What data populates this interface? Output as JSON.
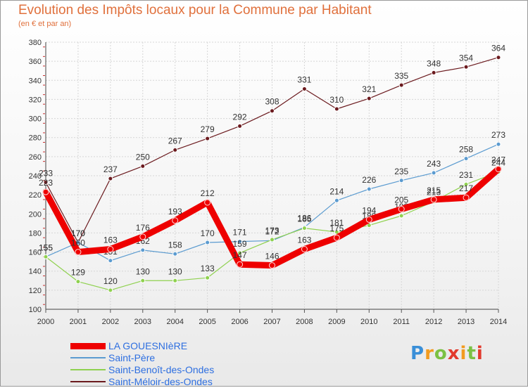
{
  "header": {
    "title": "Evolution des Impôts locaux pour la Commune par Habitant",
    "subtitle": "(en € et par an)"
  },
  "brand": {
    "logo_text": "Proxiti"
  },
  "legend": {
    "items": [
      "LA GOUESNIèRE",
      "Saint-Père",
      "Saint-Benoît-des-Ondes",
      "Saint-Méloir-des-Ondes"
    ]
  },
  "chart_data": {
    "type": "line",
    "title": "Evolution des Impôts locaux pour la Commune par Habitant",
    "subtitle": "(en € et par an)",
    "xlabel": "",
    "ylabel": "",
    "x": [
      2000,
      2001,
      2002,
      2003,
      2004,
      2005,
      2006,
      2007,
      2008,
      2009,
      2010,
      2011,
      2012,
      2013,
      2014
    ],
    "ylim": [
      100,
      380
    ],
    "yticks": [
      100,
      120,
      140,
      160,
      180,
      200,
      220,
      240,
      260,
      280,
      300,
      320,
      340,
      360,
      380
    ],
    "grid": true,
    "legend_position": "bottom-left",
    "series": [
      {
        "name": "Saint-Méloir-des-Ondes",
        "color": "#6b1a1e",
        "values": [
          233,
          170,
          237,
          250,
          267,
          279,
          292,
          308,
          331,
          310,
          321,
          335,
          348,
          354,
          364
        ]
      },
      {
        "name": "Saint-Père",
        "color": "#5b9bd0",
        "values": [
          155,
          170,
          151,
          162,
          158,
          170,
          171,
          172,
          186,
          214,
          226,
          235,
          243,
          258,
          273
        ]
      },
      {
        "name": "Saint-Benoît-des-Ondes",
        "color": "#8fd14f",
        "values": [
          155,
          129,
          120,
          130,
          130,
          133,
          159,
          173,
          185,
          181,
          188,
          198,
          213,
          231,
          244
        ]
      },
      {
        "name": "LA GOUESNIèRE",
        "color": "#ee0000",
        "values": [
          223,
          160,
          163,
          176,
          193,
          212,
          147,
          146,
          163,
          175,
          194,
          205,
          215,
          217,
          247
        ]
      }
    ]
  }
}
